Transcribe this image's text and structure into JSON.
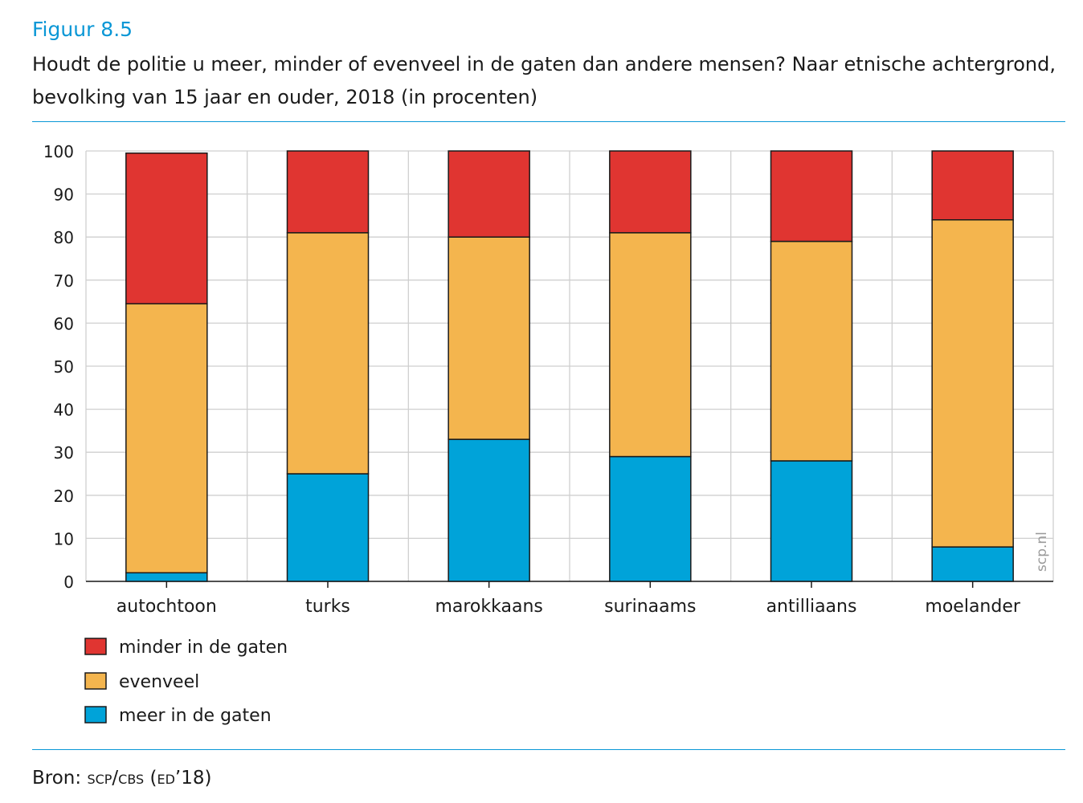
{
  "figure": {
    "label": "Figuur 8.5",
    "title": "Houdt de politie u meer, minder of evenveel in de gaten dan andere mensen? Naar etnische achtergrond, bevolking van 15 jaar en ouder, 2018 (in procenten)",
    "source_prefix": "Bron: ",
    "source_body": "scp/cbs (ed’18)",
    "watermark": "scp.nl"
  },
  "chart_data": {
    "type": "bar",
    "stacked": true,
    "categories": [
      "autochtoon",
      "turks",
      "marokkaans",
      "surinaams",
      "antilliaans",
      "moelander"
    ],
    "series": [
      {
        "name": "meer in de gaten",
        "color": "#00a3d9",
        "values": [
          2,
          25,
          33,
          29,
          28,
          8
        ]
      },
      {
        "name": "evenveel",
        "color": "#f4b54e",
        "values": [
          62.5,
          56,
          47,
          52,
          51,
          76
        ]
      },
      {
        "name": "minder in de gaten",
        "color": "#e03531",
        "values": [
          35,
          19,
          20,
          19,
          21,
          16
        ]
      }
    ],
    "legend_order": [
      "minder in de gaten",
      "evenveel",
      "meer in de gaten"
    ],
    "ylim": [
      0,
      100
    ],
    "yticks": [
      0,
      10,
      20,
      30,
      40,
      50,
      60,
      70,
      80,
      90,
      100
    ],
    "xlabel": "",
    "ylabel": "",
    "grid": true,
    "legend_position": "bottom-left"
  }
}
